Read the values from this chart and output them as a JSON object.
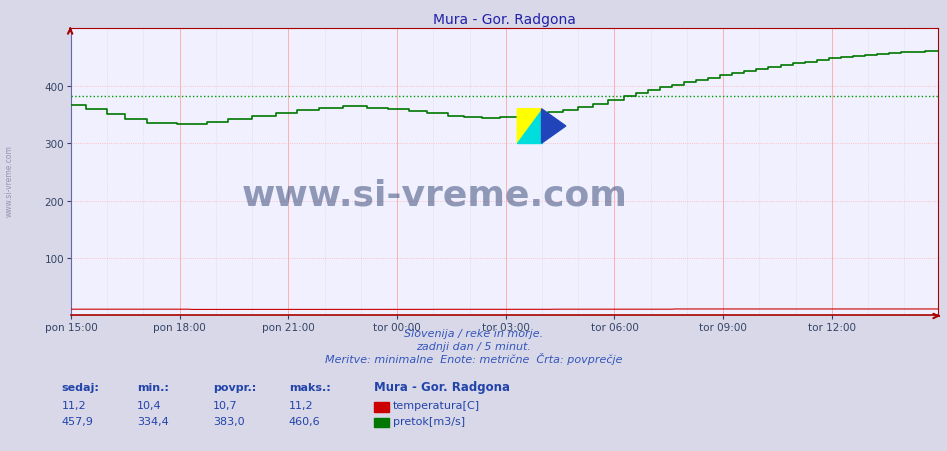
{
  "title": "Mura - Gor. Radgona",
  "bg_color": "#d8d8e8",
  "plot_bg_color": "#f0f0ff",
  "grid_color_major": "#ffb0b0",
  "grid_color_minor": "#e0c8c8",
  "line_color_pretok": "#007700",
  "line_color_temp": "#cc0000",
  "avg_line_color": "#009900",
  "avg_line_value": 383.0,
  "x_labels": [
    "pon 15:00",
    "pon 18:00",
    "pon 21:00",
    "tor 00:00",
    "tor 03:00",
    "tor 06:00",
    "tor 09:00",
    "tor 12:00"
  ],
  "x_positions": [
    0,
    36,
    72,
    108,
    144,
    180,
    216,
    252
  ],
  "y_ticks": [
    100,
    200,
    300,
    400
  ],
  "y_min": 0,
  "y_max": 500,
  "total_points": 288,
  "subtitle1": "Slovenija / reke in morje.",
  "subtitle2": "zadnji dan / 5 minut.",
  "subtitle3": "Meritve: minimalne  Enote: metrične  Črta: povprečje",
  "legend_title": "Mura - Gor. Radgona",
  "legend_temp_label": "temperatura[C]",
  "legend_pretok_label": "pretok[m3/s]",
  "stats_headers": [
    "sedaj:",
    "min.:",
    "povpr.:",
    "maks.:"
  ],
  "stats_temp": [
    "11,2",
    "10,4",
    "10,7",
    "11,2"
  ],
  "stats_pretok": [
    "457,9",
    "334,4",
    "383,0",
    "460,6"
  ],
  "watermark": "www.si-vreme.com",
  "watermark_color": "#1a3060",
  "sidebar_text": "www.si-vreme.com",
  "sidebar_color": "#8888aa",
  "title_color": "#2222aa",
  "text_color": "#3355bb",
  "stats_color": "#2244aa",
  "spine_color_h": "#aa0000",
  "spine_color_v": "#6666aa"
}
